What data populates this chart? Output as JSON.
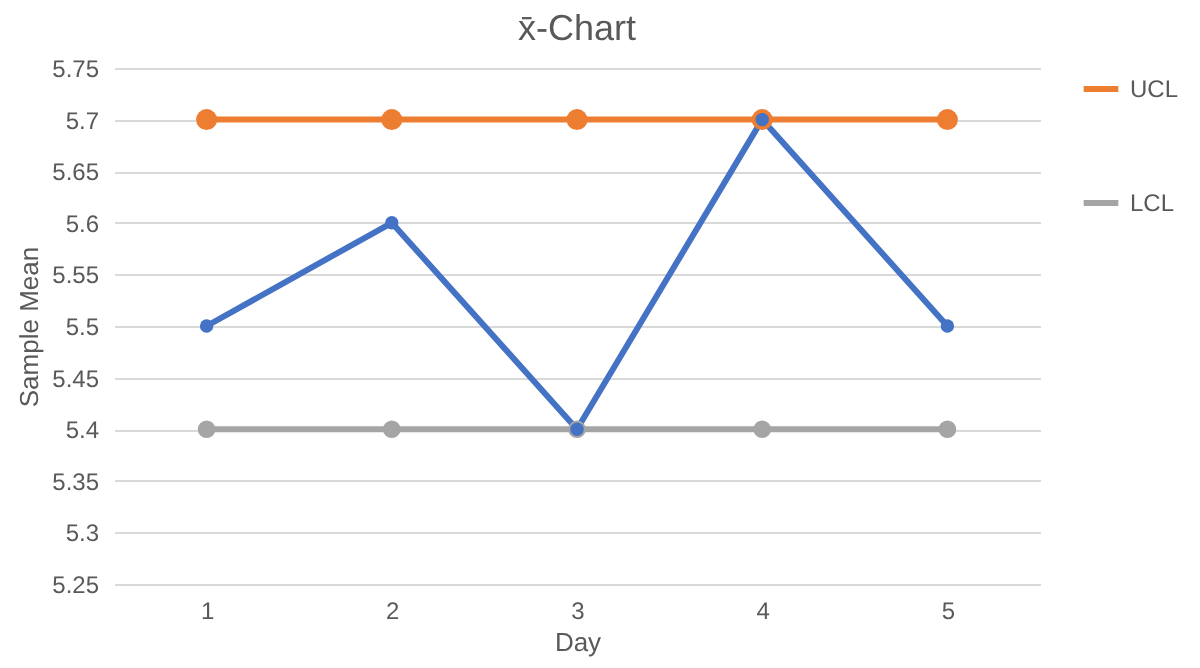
{
  "chart_data": {
    "type": "line",
    "title": "x̄-Chart",
    "xlabel": "Day",
    "ylabel": "Sample Mean",
    "categories": [
      "1",
      "2",
      "3",
      "4",
      "5"
    ],
    "series": [
      {
        "name": "UCL",
        "color": "#ed7d31",
        "values": [
          5.7,
          5.7,
          5.7,
          5.7,
          5.7
        ]
      },
      {
        "name": "LCL",
        "color": "#a5a5a5",
        "values": [
          5.4,
          5.4,
          5.4,
          5.4,
          5.4
        ]
      },
      {
        "color": "#4472c4",
        "values": [
          5.5,
          5.6,
          5.4,
          5.7,
          5.5
        ]
      }
    ],
    "ylim": [
      5.25,
      5.75
    ],
    "yticks": [
      5.25,
      5.3,
      5.35,
      5.4,
      5.45,
      5.5,
      5.55,
      5.6,
      5.65,
      5.7,
      5.75
    ],
    "grid": "y",
    "legend": "right",
    "marker": "circle",
    "line_style": "solid"
  }
}
